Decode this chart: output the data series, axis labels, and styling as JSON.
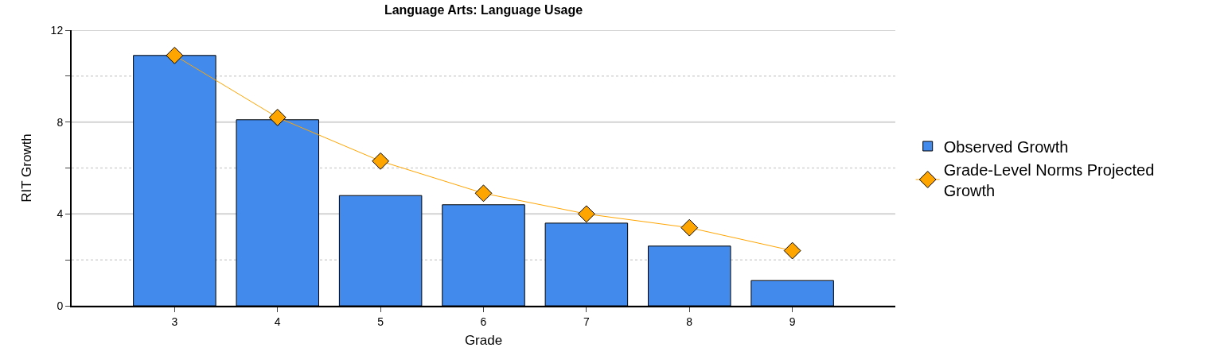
{
  "chart_data": {
    "type": "bar",
    "title": "Language Arts: Language Usage",
    "xlabel": "Grade",
    "ylabel": "RIT Growth",
    "categories": [
      "3",
      "4",
      "5",
      "6",
      "7",
      "8",
      "9"
    ],
    "series": [
      {
        "name": "Observed Growth",
        "color": "#428bed",
        "values": [
          10.9,
          8.1,
          4.8,
          4.4,
          3.6,
          2.6,
          1.1
        ]
      },
      {
        "name": "Grade-Level Norms Projected Growth",
        "type": "line",
        "color": "#ffa500",
        "marker": "diamond",
        "values": [
          10.9,
          8.2,
          6.3,
          4.9,
          4.0,
          3.4,
          2.4
        ]
      }
    ],
    "ylim": [
      0,
      12
    ],
    "yticks": [
      0,
      {
        "value": 2,
        "label": null
      },
      4,
      {
        "value": 6,
        "label": null
      },
      8,
      {
        "value": 10,
        "label": null
      },
      12
    ],
    "grid": "y",
    "legend": "right"
  }
}
